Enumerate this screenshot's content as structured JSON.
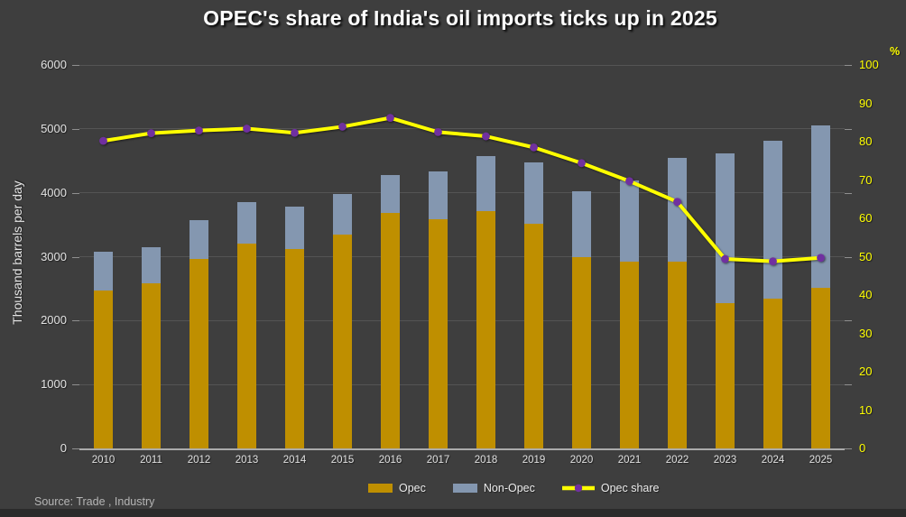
{
  "source": "Source: Trade , Industry",
  "colors": {
    "background": "#3E3E3E",
    "bottom_bar": "#2B2B2B",
    "opec_bar": "#BF8F00",
    "non_opec_bar": "#8497B0",
    "share_line": "#FFFF00",
    "share_marker": "#7030A0",
    "gridline": "#545454",
    "axis_line": "#ABABAB",
    "left_axis_label": "#E3E3E3",
    "right_axis_label": "#FFFF00",
    "title_text": "#FFFFFF"
  },
  "chart_data": {
    "type": "combo: stacked bar + line",
    "title": "OPEC's share of India's oil imports ticks up in 2025",
    "categories": [
      "2010",
      "2011",
      "2012",
      "2013",
      "2014",
      "2015",
      "2016",
      "2017",
      "2018",
      "2019",
      "2020",
      "2021",
      "2022",
      "2023",
      "2024",
      "2025"
    ],
    "series": [
      {
        "name": "Opec",
        "type": "bar",
        "axis": "left",
        "color": "#BF8F00",
        "values": [
          2470,
          2590,
          2960,
          3210,
          3120,
          3340,
          3690,
          3580,
          3720,
          3510,
          2990,
          2920,
          2920,
          2280,
          2350,
          2510
        ]
      },
      {
        "name": "Non-Opec",
        "type": "bar",
        "axis": "left",
        "color": "#8497B0",
        "values": [
          610,
          560,
          610,
          640,
          670,
          640,
          590,
          760,
          850,
          960,
          1030,
          1270,
          1620,
          2340,
          2470,
          2540
        ]
      },
      {
        "name": "Opec share",
        "type": "line",
        "axis": "right",
        "color": "#FFFF00",
        "marker_color": "#7030A0",
        "values": [
          80.2,
          82.2,
          82.9,
          83.4,
          82.3,
          83.9,
          86.2,
          82.5,
          81.4,
          78.5,
          74.4,
          69.7,
          64.3,
          49.4,
          48.8,
          49.7
        ]
      }
    ],
    "stacked": true,
    "ylabel_left": "Thousand barrels per day",
    "ylabel_right": "%",
    "ylim_left": [
      0,
      6000
    ],
    "ylim_right": [
      0,
      100
    ],
    "y_left_ticks": [
      0,
      1000,
      2000,
      3000,
      4000,
      5000,
      6000
    ],
    "y_right_ticks": [
      0,
      10,
      20,
      30,
      40,
      50,
      60,
      70,
      80,
      90,
      100
    ],
    "grid": "horizontal gridlines at left-axis 1000 steps",
    "legend_position": "bottom"
  }
}
